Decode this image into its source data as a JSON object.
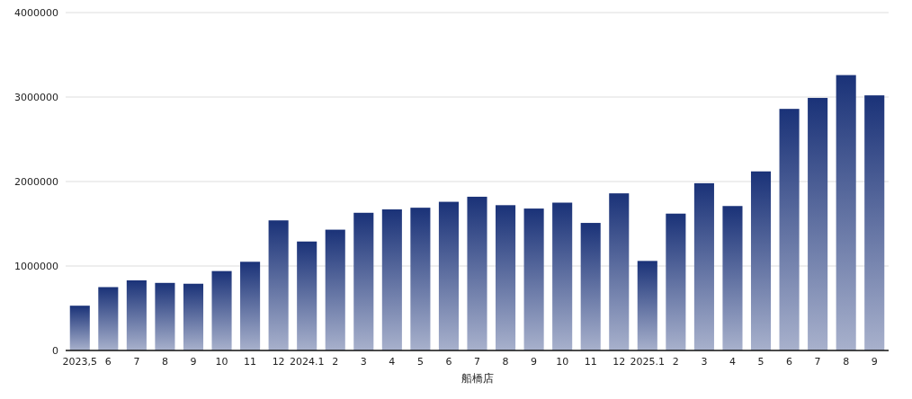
{
  "chart_data": {
    "type": "bar",
    "xlabel": "船橋店",
    "categories": [
      "2023,5",
      "6",
      "7",
      "8",
      "9",
      "10",
      "11",
      "12",
      "2024.1",
      "2",
      "3",
      "4",
      "5",
      "6",
      "7",
      "8",
      "9",
      "10",
      "11",
      "12",
      "2025.1",
      "2",
      "3",
      "4",
      "5",
      "6",
      "7",
      "8",
      "9"
    ],
    "values": [
      530000,
      750000,
      830000,
      800000,
      790000,
      940000,
      1050000,
      1540000,
      1290000,
      1430000,
      1630000,
      1670000,
      1690000,
      1760000,
      1820000,
      1720000,
      1680000,
      1750000,
      1510000,
      1860000,
      1060000,
      1620000,
      1980000,
      1710000,
      2120000,
      2860000,
      2990000,
      3260000,
      3020000
    ],
    "color": "#1a3278",
    "ylim": [
      0,
      4000000
    ],
    "yticks": [
      0,
      1000000,
      2000000,
      3000000,
      4000000
    ],
    "grid": "y"
  }
}
